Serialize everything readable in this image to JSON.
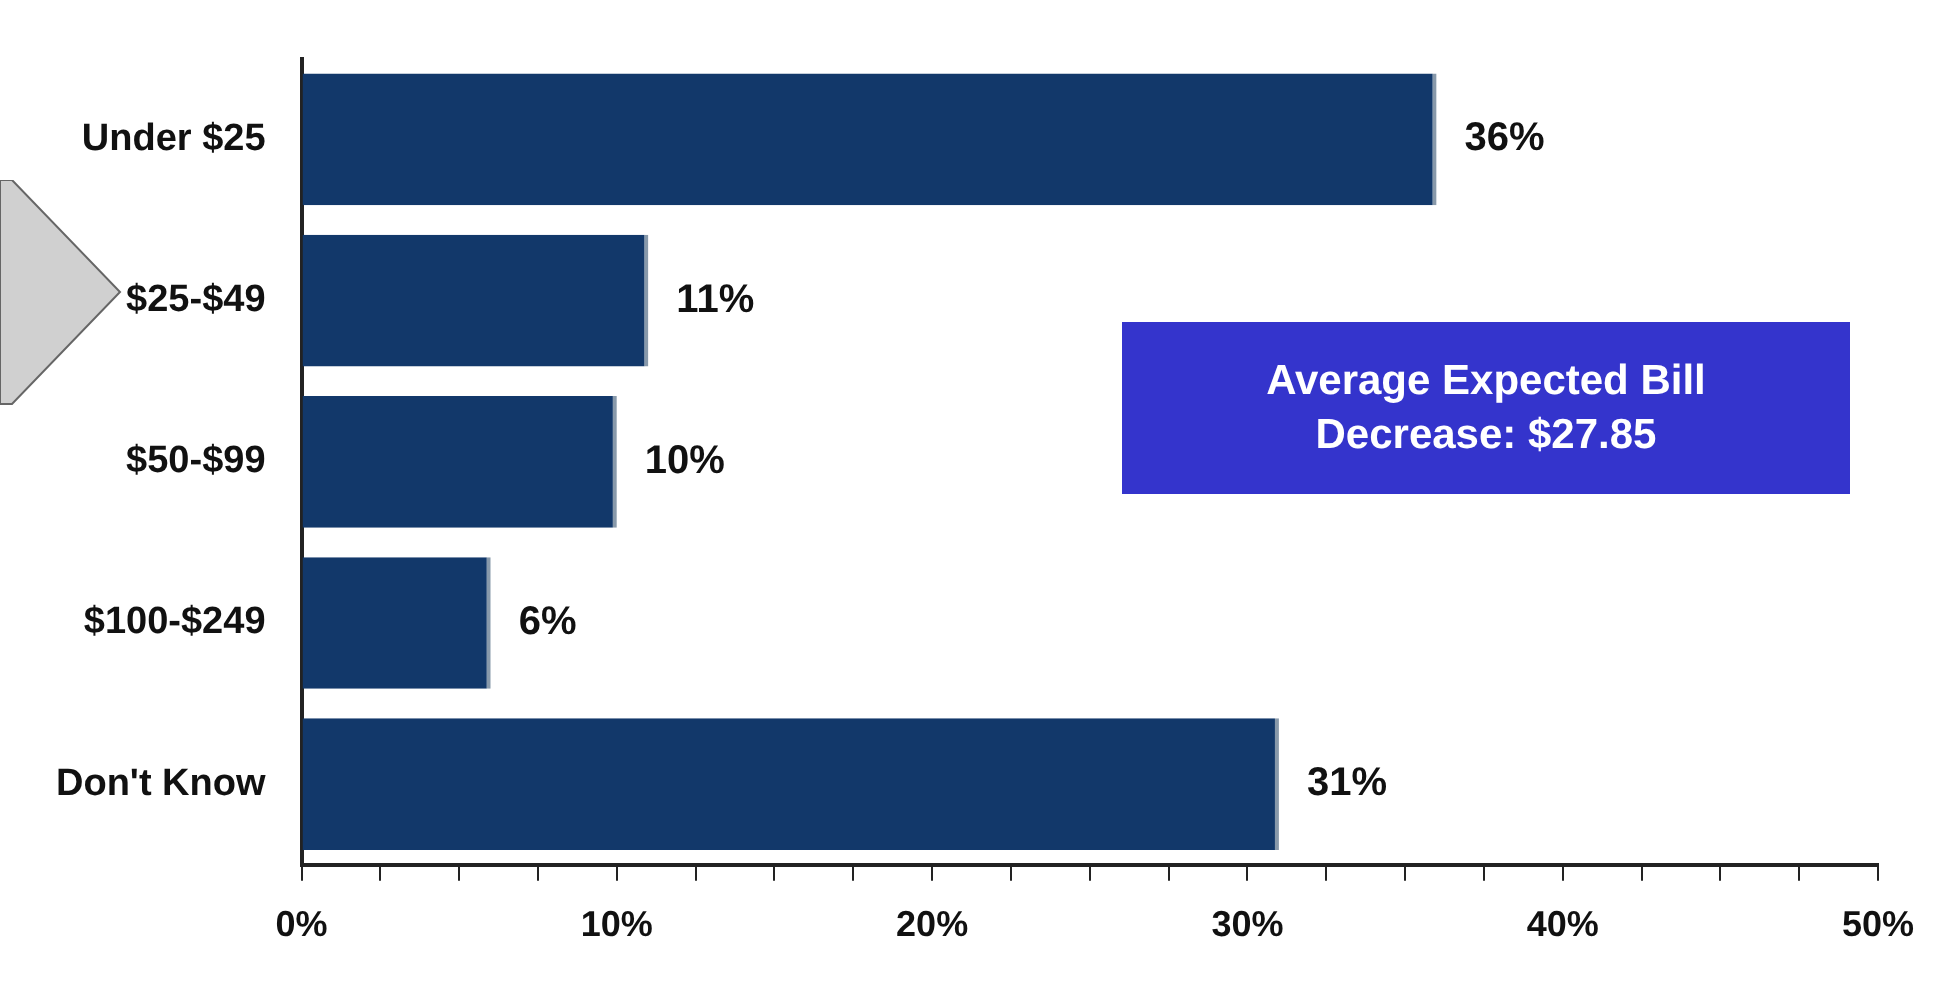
{
  "chart_data": {
    "type": "bar",
    "orientation": "horizontal",
    "categories": [
      "Under $25",
      "$25-$49",
      "$50-$99",
      "$100-$249",
      "Don't Know"
    ],
    "values": [
      36,
      11,
      10,
      6,
      31
    ],
    "value_labels": [
      "36%",
      "11%",
      "10%",
      "6%",
      "31%"
    ],
    "color": "#12386a",
    "xlim": [
      0,
      50
    ],
    "xticks": [
      {
        "value": 0,
        "label": "0%"
      },
      {
        "value": 2.5,
        "label": null
      },
      {
        "value": 5,
        "label": null
      },
      {
        "value": 7.5,
        "label": null
      },
      {
        "value": 10,
        "label": "10%"
      },
      {
        "value": 12.5,
        "label": null
      },
      {
        "value": 15,
        "label": null
      },
      {
        "value": 17.5,
        "label": null
      },
      {
        "value": 20,
        "label": "20%"
      },
      {
        "value": 22.5,
        "label": null
      },
      {
        "value": 25,
        "label": null
      },
      {
        "value": 27.5,
        "label": null
      },
      {
        "value": 30,
        "label": "30%"
      },
      {
        "value": 32.5,
        "label": null
      },
      {
        "value": 35,
        "label": null
      },
      {
        "value": 37.5,
        "label": null
      },
      {
        "value": 40,
        "label": "40%"
      },
      {
        "value": 42.5,
        "label": null
      },
      {
        "value": 45,
        "label": null
      },
      {
        "value": 47.5,
        "label": null
      },
      {
        "value": 50,
        "label": "50%"
      }
    ],
    "grid": false,
    "legend": false,
    "annotations": [
      "Average Expected Bill Decrease: $27.85"
    ]
  }
}
